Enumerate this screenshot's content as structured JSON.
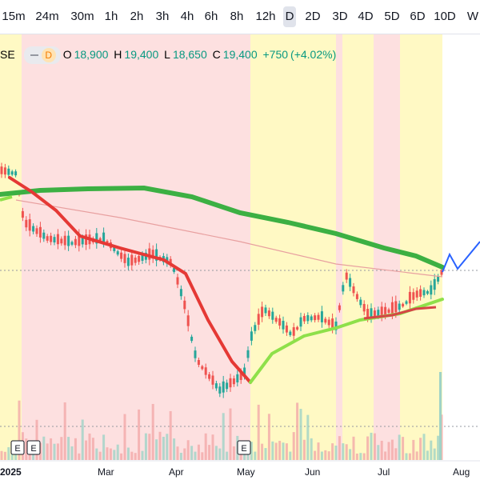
{
  "toolbar": {
    "intervals": [
      "15m",
      "24m",
      "30m",
      "1h",
      "2h",
      "3h",
      "4h",
      "6h",
      "8h",
      "12h",
      "D",
      "2D",
      "3D",
      "4D",
      "5D",
      "6D",
      "10D",
      "W"
    ]
  },
  "legend": {
    "symbol": "SE",
    "interval": "D",
    "open": {
      "label": "O",
      "value": "18,900"
    },
    "high": {
      "label": "H",
      "value": "19,400"
    },
    "low": {
      "label": "L",
      "value": "18,650"
    },
    "close": {
      "label": "C",
      "value": "19,400"
    },
    "change": "+750",
    "change_pct": "(+4.02%)"
  },
  "x_axis": {
    "labels": [
      "2025",
      "Mar",
      "Apr",
      "May",
      "Jun",
      "Jul",
      "Aug"
    ]
  },
  "events": [
    "E",
    "E",
    "E"
  ]
}
